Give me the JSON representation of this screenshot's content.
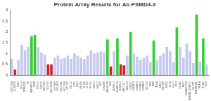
{
  "chart_data": {
    "type": "bar",
    "title": "Protein Array Results for Ab PSMD4-3",
    "categories": [
      "CCRF-CEM",
      "HL-60(TB)",
      "K-562",
      "MOLT-4",
      "RPMI-8226",
      "SR",
      "A549/ATCC",
      "EKVX",
      "HOP-62",
      "HOP-92",
      "NCI-H226",
      "NCI-H23",
      "NCI-H322M",
      "NCI-H460",
      "NCI-H522",
      "COLO 205",
      "HCC-2998",
      "HCT-116",
      "HCT-15",
      "HT29",
      "KM12",
      "SW-620",
      "SF-268",
      "SF-295",
      "SF-539",
      "SNB-19",
      "SNB-75",
      "U251",
      "LOX IMVI",
      "MALME-3M",
      "M14",
      "SK-MEL-2",
      "SK-MEL-28",
      "SK-MEL-5",
      "UACC-257",
      "UACC-62",
      "IGROV1",
      "OVCAR-3",
      "OVCAR-4",
      "OVCAR-5",
      "OVCAR-8",
      "SK-OV-3",
      "786-0",
      "A498",
      "ACHN",
      "CAKI-1",
      "RXF 393",
      "SN12C",
      "TK-10",
      "UO-31",
      "PC-3",
      "DU-145",
      "MCF7",
      "NCI/ADR-RES",
      "MDA-MB-231/ATCC",
      "HS 578T",
      "MDA-MB-435",
      "MDA-N",
      "BT-549",
      "T-47D"
    ],
    "values": [
      0.75,
      0.25,
      0.7,
      1.4,
      1.15,
      1.3,
      1.8,
      1.85,
      1.3,
      1.05,
      0.95,
      0.5,
      0.5,
      0.8,
      0.9,
      0.75,
      0.8,
      0.9,
      0.75,
      1.0,
      0.9,
      0.8,
      0.75,
      0.9,
      1.15,
      1.0,
      1.05,
      1.1,
      1.05,
      1.65,
      0.4,
      1.1,
      1.7,
      0.5,
      0.45,
      0.9,
      2.0,
      1.0,
      0.85,
      0.7,
      0.8,
      0.9,
      0.6,
      1.6,
      0.7,
      0.9,
      1.0,
      1.3,
      1.1,
      0.6,
      2.2,
      1.3,
      0.8,
      1.45,
      1.1,
      0.55,
      2.8,
      0.6,
      1.7,
      0.5
    ],
    "colors": [
      "#c6c9ee",
      "#cc2222",
      "#c6c9ee",
      "#c6c9ee",
      "#c6c9ee",
      "#c6c9ee",
      "#33cc33",
      "#33cc33",
      "#c6c9ee",
      "#c6c9ee",
      "#c6c9ee",
      "#cc2222",
      "#cc2222",
      "#c6c9ee",
      "#c6c9ee",
      "#c6c9ee",
      "#c6c9ee",
      "#c6c9ee",
      "#c6c9ee",
      "#c6c9ee",
      "#c6c9ee",
      "#c6c9ee",
      "#c6c9ee",
      "#c6c9ee",
      "#c6c9ee",
      "#c6c9ee",
      "#c6c9ee",
      "#c6c9ee",
      "#c6c9ee",
      "#33cc33",
      "#cc2222",
      "#c6c9ee",
      "#33cc33",
      "#cc2222",
      "#cc2222",
      "#c6c9ee",
      "#33cc33",
      "#c6c9ee",
      "#c6c9ee",
      "#c6c9ee",
      "#c6c9ee",
      "#c6c9ee",
      "#c6c9ee",
      "#33cc33",
      "#c6c9ee",
      "#c6c9ee",
      "#c6c9ee",
      "#c6c9ee",
      "#c6c9ee",
      "#c6c9ee",
      "#33cc33",
      "#c6c9ee",
      "#c6c9ee",
      "#c6c9ee",
      "#c6c9ee",
      "#c6c9ee",
      "#33cc33",
      "#c6c9ee",
      "#33cc33",
      "#c6c9ee"
    ],
    "ylim": [
      0,
      3
    ],
    "yticks": [
      0,
      0.5,
      1,
      1.5,
      2,
      2.5,
      3
    ],
    "grid": false
  }
}
